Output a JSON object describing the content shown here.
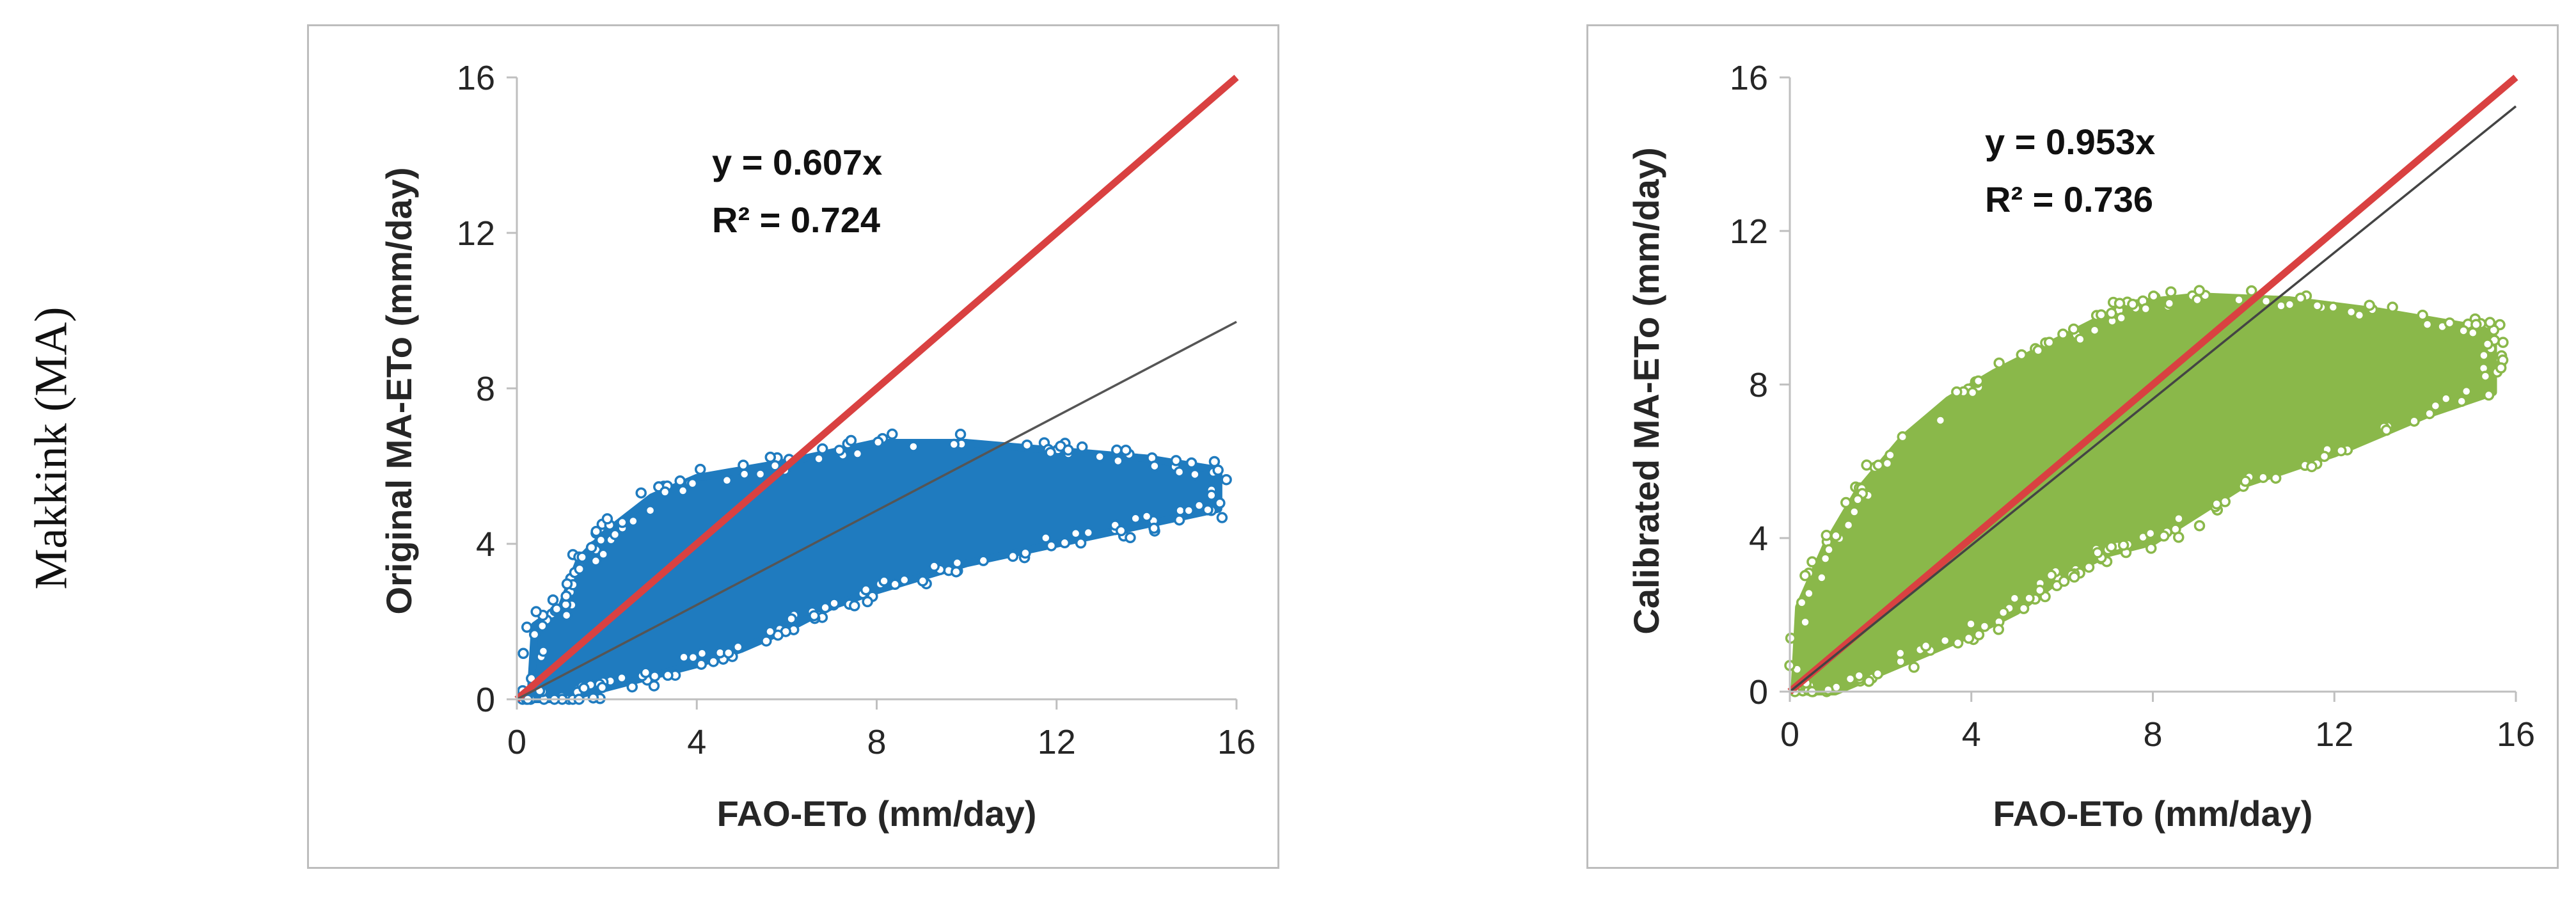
{
  "figure": {
    "row_label": "Makkink (MA)"
  },
  "colors": {
    "red_line": "#d94141",
    "fit_line_left": "#555555",
    "fit_line_right": "#444444",
    "axis": "#bfbfbf",
    "text": "#262626"
  },
  "chart_data": [
    {
      "type": "scatter",
      "name": "original",
      "xlabel": "FAO-ETo (mm/day)",
      "ylabel": "Original MA-ETo (mm/day)",
      "xlim": [
        0,
        16
      ],
      "ylim": [
        0,
        16
      ],
      "xticks": [
        0,
        4,
        8,
        12,
        16
      ],
      "yticks": [
        0,
        4,
        8,
        12,
        16
      ],
      "grid": false,
      "marker_color": "#1f7bbf",
      "equation": "y = 0.607x",
      "r_squared": "R² = 0.724",
      "fit_slope": 0.607,
      "one_to_one_line": true,
      "envelope": [
        [
          0.3,
          0.0
        ],
        [
          0.4,
          1.9
        ],
        [
          1.0,
          2.4
        ],
        [
          1.4,
          3.6
        ],
        [
          2.0,
          4.3
        ],
        [
          3.0,
          5.2
        ],
        [
          4.0,
          5.7
        ],
        [
          6.0,
          6.1
        ],
        [
          8.0,
          6.6
        ],
        [
          10.0,
          6.6
        ],
        [
          12.0,
          6.4
        ],
        [
          14.0,
          6.2
        ],
        [
          15.6,
          5.9
        ],
        [
          15.6,
          4.9
        ],
        [
          14.0,
          4.5
        ],
        [
          12.0,
          4.0
        ],
        [
          10.0,
          3.5
        ],
        [
          8.0,
          2.8
        ],
        [
          7.0,
          2.4
        ],
        [
          6.0,
          1.8
        ],
        [
          5.0,
          1.3
        ],
        [
          4.0,
          0.9
        ],
        [
          3.0,
          0.6
        ],
        [
          2.0,
          0.3
        ],
        [
          1.0,
          0.0
        ]
      ]
    },
    {
      "type": "scatter",
      "name": "calibrated",
      "xlabel": "FAO-ETo (mm/day)",
      "ylabel": "Calibrated MA-ETo (mm/day)",
      "xlim": [
        0,
        16
      ],
      "ylim": [
        0,
        16
      ],
      "xticks": [
        0,
        4,
        8,
        12,
        16
      ],
      "yticks": [
        0,
        4,
        8,
        12,
        16
      ],
      "grid": false,
      "marker_color": "#8ab84a",
      "equation": "y = 0.953x",
      "r_squared": "R² = 0.736",
      "fit_slope": 0.953,
      "one_to_one_line": true,
      "envelope": [
        [
          0.1,
          0.0
        ],
        [
          0.2,
          2.2
        ],
        [
          0.8,
          3.8
        ],
        [
          1.5,
          5.2
        ],
        [
          2.5,
          6.6
        ],
        [
          3.5,
          7.6
        ],
        [
          4.5,
          8.3
        ],
        [
          6.0,
          9.2
        ],
        [
          7.5,
          10.1
        ],
        [
          9.0,
          10.3
        ],
        [
          11.0,
          10.2
        ],
        [
          13.0,
          9.9
        ],
        [
          15.5,
          9.4
        ],
        [
          15.5,
          7.8
        ],
        [
          14.0,
          7.2
        ],
        [
          12.0,
          6.2
        ],
        [
          10.0,
          5.4
        ],
        [
          8.0,
          3.9
        ],
        [
          7.0,
          3.6
        ],
        [
          6.0,
          3.0
        ],
        [
          5.0,
          2.1
        ],
        [
          4.0,
          1.5
        ],
        [
          3.0,
          1.0
        ],
        [
          2.0,
          0.5
        ],
        [
          1.0,
          0.0
        ]
      ]
    }
  ]
}
